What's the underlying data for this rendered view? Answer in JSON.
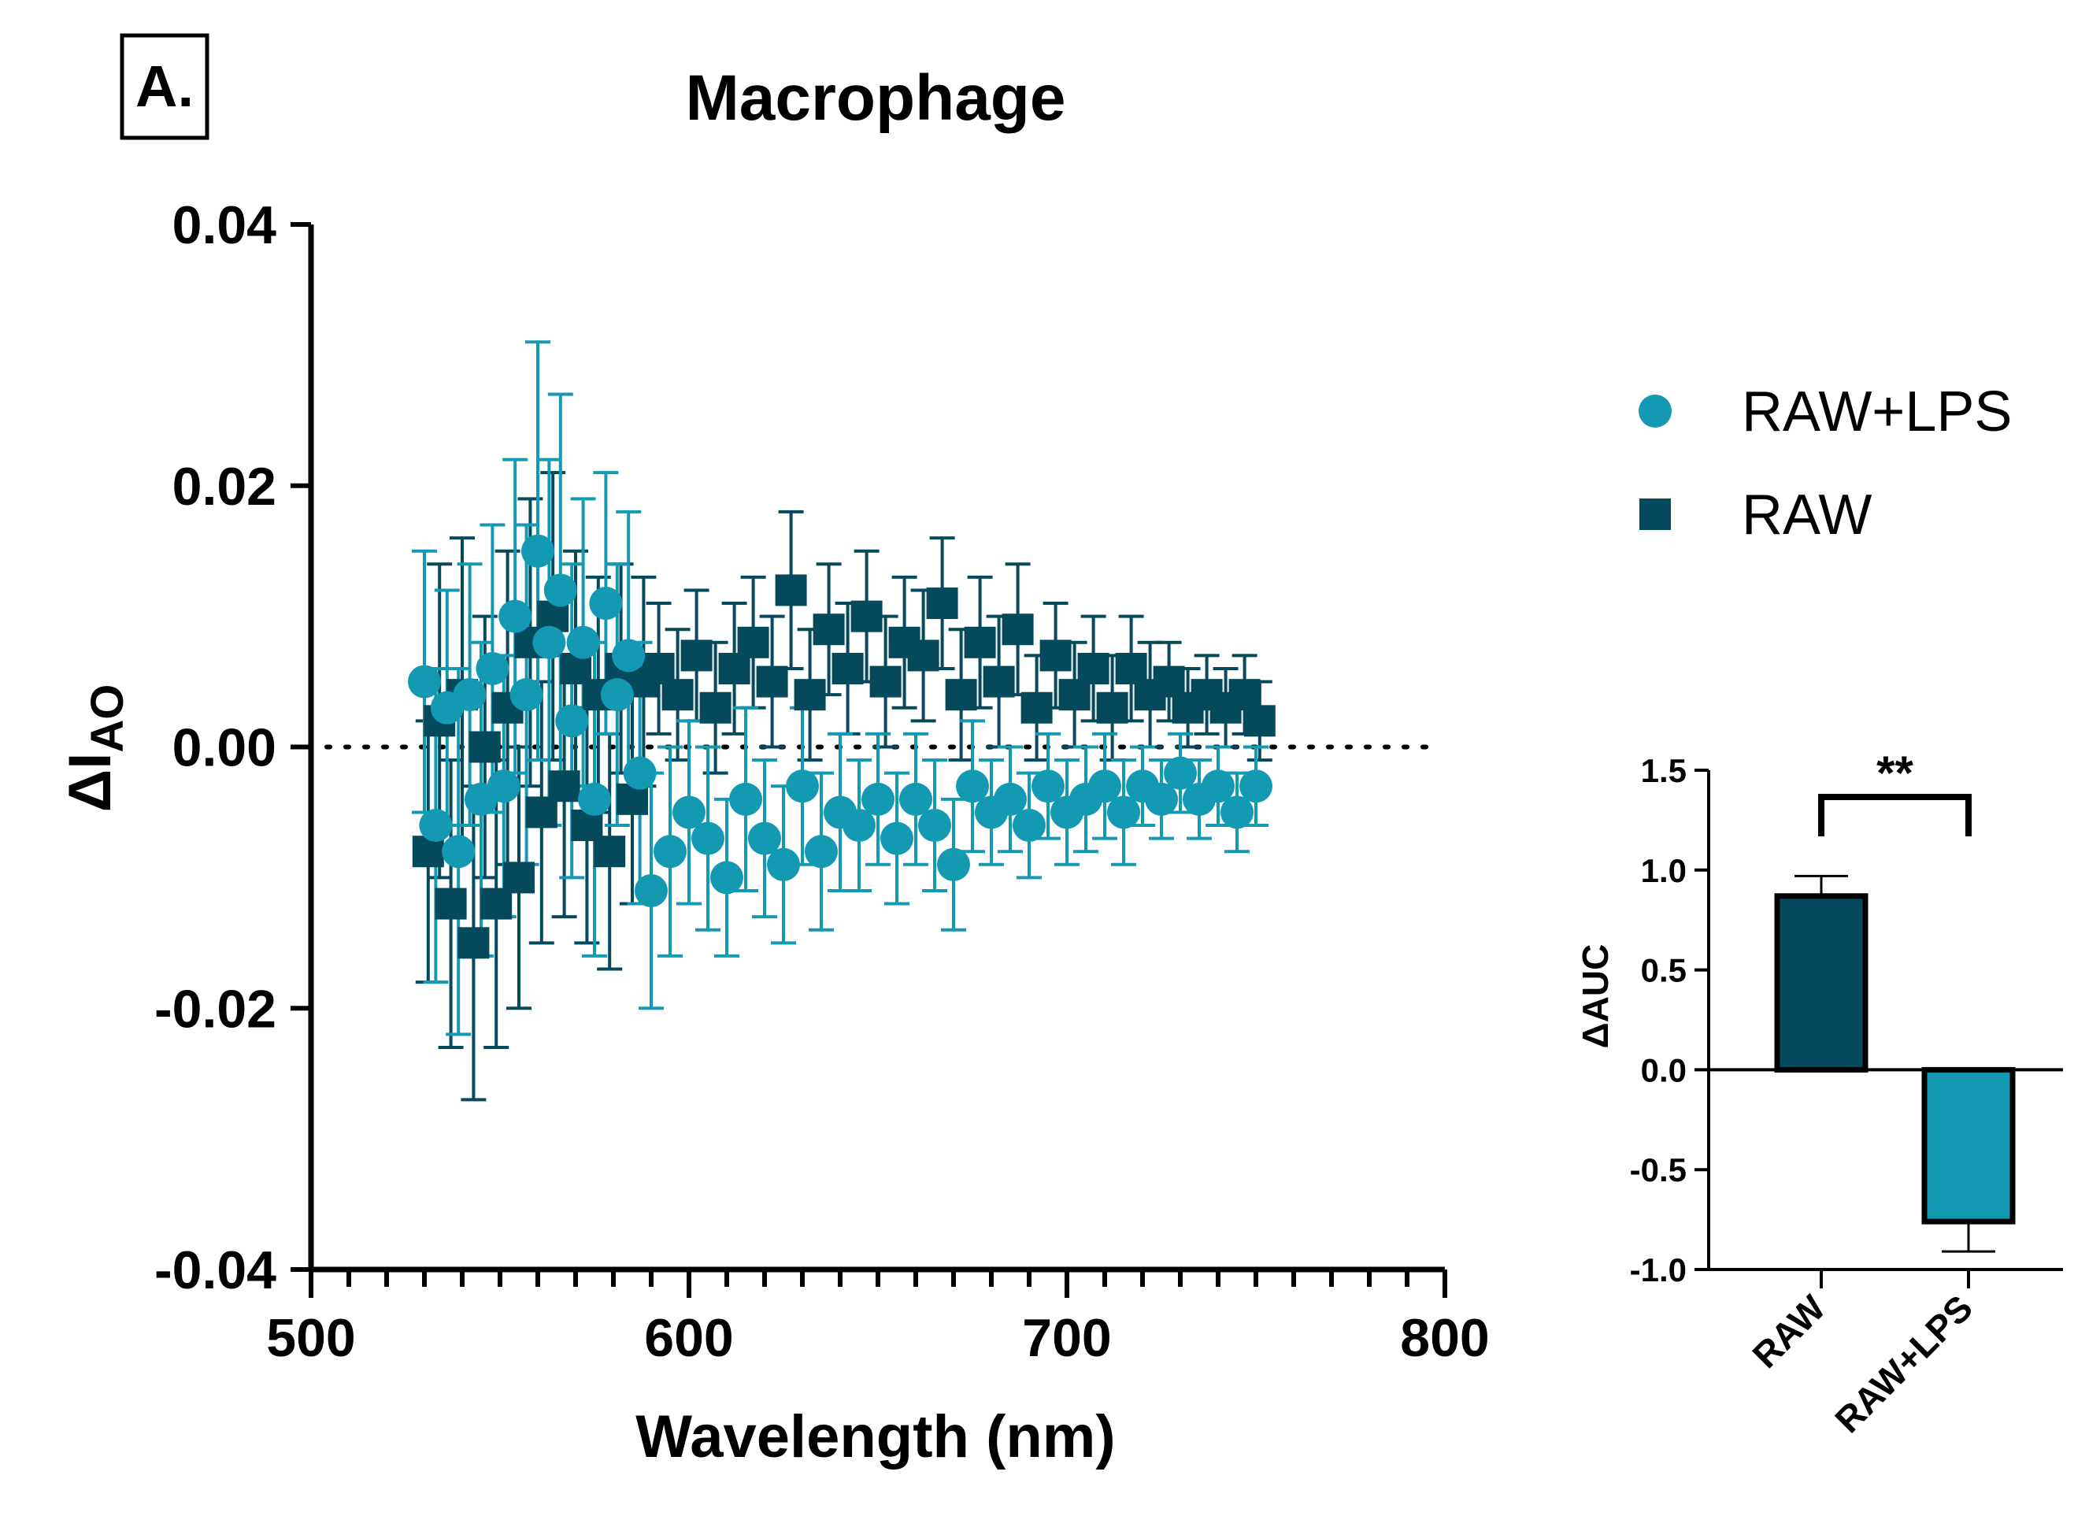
{
  "panel_label": "A.",
  "colors": {
    "raw_lps": "#1499b3",
    "raw": "#05495d",
    "axis": "#000000"
  },
  "legend_entries": [
    {
      "label": "RAW+LPS",
      "marker": "circle",
      "color": "#1499b3"
    },
    {
      "label": "RAW",
      "marker": "square",
      "color": "#05495d"
    }
  ],
  "chart_data": [
    {
      "type": "scatter",
      "title": "Macrophage",
      "xlabel": "Wavelength (nm)",
      "ylabel_main": "ΔI",
      "ylabel_sub": "AO",
      "xlim": [
        500,
        800
      ],
      "ylim": [
        -0.04,
        0.04
      ],
      "xticks": [
        "500",
        "600",
        "700",
        "800"
      ],
      "yticks": [
        "-0.04",
        "-0.02",
        "0.00",
        "0.02",
        "0.04"
      ],
      "x_minor_step": 10,
      "reference_line_y": 0,
      "legend": "top-right",
      "error_bars": true,
      "series": [
        {
          "name": "RAW+LPS",
          "marker": "circle",
          "color": "#1499b3",
          "x": [
            530,
            533,
            536,
            539,
            542,
            545,
            548,
            551,
            554,
            557,
            560,
            563,
            566,
            569,
            572,
            575,
            578,
            581,
            584,
            587,
            590,
            595,
            600,
            605,
            610,
            615,
            620,
            625,
            630,
            635,
            640,
            645,
            650,
            655,
            660,
            665,
            670,
            675,
            680,
            685,
            690,
            695,
            700,
            705,
            710,
            715,
            720,
            725,
            730,
            735,
            740,
            745,
            750
          ],
          "y": [
            0.005,
            -0.006,
            0.003,
            -0.008,
            0.004,
            -0.004,
            0.006,
            -0.003,
            0.01,
            0.004,
            0.015,
            0.008,
            0.012,
            0.002,
            0.008,
            -0.004,
            0.011,
            0.004,
            0.007,
            -0.002,
            -0.011,
            -0.008,
            -0.005,
            -0.007,
            -0.01,
            -0.004,
            -0.007,
            -0.009,
            -0.003,
            -0.008,
            -0.005,
            -0.006,
            -0.004,
            -0.007,
            -0.004,
            -0.006,
            -0.009,
            -0.003,
            -0.005,
            -0.004,
            -0.006,
            -0.003,
            -0.005,
            -0.004,
            -0.003,
            -0.005,
            -0.003,
            -0.004,
            -0.002,
            -0.004,
            -0.003,
            -0.005,
            -0.003
          ],
          "err": [
            0.01,
            0.012,
            0.009,
            0.014,
            0.01,
            0.012,
            0.011,
            0.01,
            0.012,
            0.013,
            0.016,
            0.014,
            0.015,
            0.012,
            0.011,
            0.012,
            0.01,
            0.01,
            0.011,
            0.01,
            0.009,
            0.008,
            0.007,
            0.007,
            0.006,
            0.007,
            0.006,
            0.006,
            0.006,
            0.006,
            0.006,
            0.005,
            0.005,
            0.005,
            0.005,
            0.005,
            0.005,
            0.005,
            0.004,
            0.004,
            0.004,
            0.004,
            0.004,
            0.004,
            0.004,
            0.004,
            0.003,
            0.003,
            0.003,
            0.003,
            0.003,
            0.003,
            0.003
          ]
        },
        {
          "name": "RAW",
          "marker": "square",
          "color": "#05495d",
          "x": [
            531,
            534,
            537,
            540,
            543,
            546,
            549,
            552,
            555,
            558,
            561,
            564,
            567,
            570,
            573,
            576,
            579,
            582,
            585,
            588,
            592,
            597,
            602,
            607,
            612,
            617,
            622,
            627,
            632,
            637,
            642,
            647,
            652,
            657,
            662,
            667,
            672,
            677,
            682,
            687,
            692,
            697,
            702,
            707,
            712,
            717,
            722,
            727,
            732,
            737,
            742,
            747,
            751
          ],
          "y": [
            -0.008,
            0.002,
            -0.012,
            0.004,
            -0.015,
            0.0,
            -0.012,
            0.003,
            -0.01,
            0.008,
            -0.005,
            0.01,
            -0.003,
            0.006,
            -0.006,
            0.004,
            -0.008,
            0.006,
            -0.004,
            0.005,
            0.006,
            0.004,
            0.007,
            0.003,
            0.006,
            0.008,
            0.005,
            0.012,
            0.004,
            0.009,
            0.006,
            0.01,
            0.005,
            0.008,
            0.007,
            0.011,
            0.004,
            0.008,
            0.005,
            0.009,
            0.003,
            0.007,
            0.004,
            0.006,
            0.003,
            0.006,
            0.004,
            0.005,
            0.003,
            0.004,
            0.003,
            0.004,
            0.002
          ],
          "err": [
            0.01,
            0.012,
            0.011,
            0.012,
            0.012,
            0.01,
            0.011,
            0.012,
            0.01,
            0.011,
            0.01,
            0.011,
            0.01,
            0.009,
            0.009,
            0.009,
            0.009,
            0.008,
            0.008,
            0.008,
            0.005,
            0.005,
            0.005,
            0.005,
            0.005,
            0.005,
            0.005,
            0.006,
            0.005,
            0.005,
            0.005,
            0.005,
            0.005,
            0.005,
            0.005,
            0.005,
            0.005,
            0.005,
            0.005,
            0.005,
            0.004,
            0.004,
            0.004,
            0.004,
            0.004,
            0.004,
            0.004,
            0.003,
            0.003,
            0.003,
            0.003,
            0.003,
            0.003
          ]
        }
      ]
    },
    {
      "type": "bar",
      "title": "",
      "ylabel": "ΔAUC",
      "categories": [
        "RAW",
        "RAW+LPS"
      ],
      "values": [
        0.87,
        -0.76
      ],
      "errors": [
        0.1,
        0.15
      ],
      "bar_colors": [
        "#05495d",
        "#1499b3"
      ],
      "ylim": [
        -1.0,
        1.5
      ],
      "yticks": [
        "1.5",
        "1.0",
        "0.5",
        "0.0",
        "-0.5",
        "-1.0"
      ],
      "significance": "**"
    }
  ]
}
